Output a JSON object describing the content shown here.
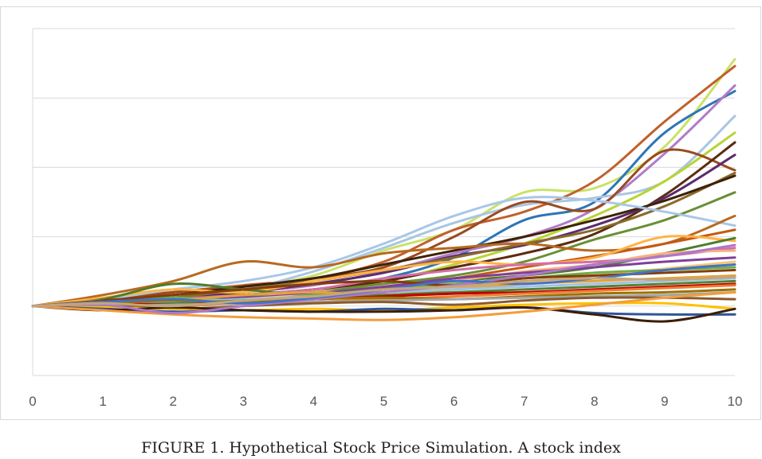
{
  "chart_data": {
    "type": "line",
    "xlabel": "",
    "ylabel": "",
    "x": [
      0,
      1,
      2,
      3,
      4,
      5,
      6,
      7,
      8,
      9,
      10
    ],
    "xlim": [
      0,
      10
    ],
    "ylim": [
      0.5,
      3.0
    ],
    "y_gridlines": [
      1.0,
      1.5,
      2.0,
      2.5
    ],
    "y_tick_labels_shown": false,
    "grid": "horizontal",
    "legend": "none",
    "x_tick_labels": [
      "0",
      "1",
      "2",
      "3",
      "4",
      "5",
      "6",
      "7",
      "8",
      "9",
      "10"
    ],
    "series": [
      {
        "color": "#c9e26a",
        "values": [
          1.0,
          1.05,
          1.08,
          1.13,
          1.22,
          1.4,
          1.55,
          1.82,
          1.85,
          2.15,
          2.78
        ]
      },
      {
        "color": "#c0612b",
        "values": [
          1.0,
          1.03,
          1.1,
          1.15,
          1.2,
          1.32,
          1.55,
          1.68,
          1.9,
          2.33,
          2.73
        ]
      },
      {
        "color": "#2e75b6",
        "values": [
          1.0,
          1.02,
          1.06,
          1.08,
          1.12,
          1.2,
          1.35,
          1.62,
          1.75,
          2.25,
          2.55
        ]
      },
      {
        "color": "#b07cc6",
        "values": [
          1.0,
          1.04,
          1.05,
          1.1,
          1.15,
          1.25,
          1.38,
          1.5,
          1.7,
          2.1,
          2.59
        ]
      },
      {
        "color": "#a9c6e2",
        "values": [
          1.0,
          1.03,
          1.07,
          1.12,
          1.25,
          1.42,
          1.6,
          1.73,
          1.78,
          1.9,
          2.37
        ]
      },
      {
        "color": "#b8d433",
        "values": [
          1.0,
          1.02,
          1.05,
          1.08,
          1.12,
          1.18,
          1.3,
          1.45,
          1.65,
          1.9,
          2.25
        ]
      },
      {
        "color": "#9a4a1e",
        "values": [
          1.0,
          1.05,
          1.1,
          1.14,
          1.2,
          1.28,
          1.5,
          1.75,
          1.7,
          2.12,
          1.98
        ]
      },
      {
        "color": "#5b2c0f",
        "values": [
          1.0,
          1.01,
          1.04,
          1.08,
          1.12,
          1.18,
          1.28,
          1.38,
          1.52,
          1.8,
          2.18
        ]
      },
      {
        "color": "#5a2d6e",
        "values": [
          1.0,
          1.03,
          1.06,
          1.1,
          1.16,
          1.24,
          1.36,
          1.44,
          1.58,
          1.78,
          2.09
        ]
      },
      {
        "color": "#8a6a2a",
        "values": [
          1.0,
          1.02,
          1.06,
          1.12,
          1.18,
          1.26,
          1.35,
          1.45,
          1.55,
          1.72,
          1.96
        ]
      },
      {
        "color": "#3d2208",
        "values": [
          1.0,
          1.04,
          1.08,
          1.14,
          1.2,
          1.3,
          1.4,
          1.5,
          1.62,
          1.76,
          1.94
        ]
      },
      {
        "color": "#6a8f35",
        "values": [
          1.0,
          1.02,
          1.04,
          1.07,
          1.1,
          1.16,
          1.22,
          1.32,
          1.48,
          1.62,
          1.82
        ]
      },
      {
        "color": "#a8c7e8",
        "values": [
          1.0,
          1.05,
          1.12,
          1.18,
          1.28,
          1.45,
          1.65,
          1.78,
          1.76,
          1.68,
          1.58
        ]
      },
      {
        "color": "#b8691f",
        "values": [
          1.0,
          1.08,
          1.18,
          1.32,
          1.28,
          1.38,
          1.42,
          1.45,
          1.4,
          1.45,
          1.65
        ]
      },
      {
        "color": "#c55a11",
        "values": [
          1.0,
          1.02,
          1.03,
          1.05,
          1.08,
          1.13,
          1.2,
          1.28,
          1.36,
          1.45,
          1.55
        ]
      },
      {
        "color": "#ffb347",
        "values": [
          1.0,
          1.06,
          1.12,
          1.1,
          1.18,
          1.26,
          1.32,
          1.3,
          1.35,
          1.5,
          1.47
        ]
      },
      {
        "color": "#4e7d2a",
        "values": [
          1.0,
          1.05,
          1.16,
          1.12,
          1.08,
          1.12,
          1.18,
          1.22,
          1.28,
          1.38,
          1.49
        ]
      },
      {
        "color": "#d36fa6",
        "values": [
          1.0,
          1.01,
          1.05,
          1.08,
          1.12,
          1.2,
          1.26,
          1.3,
          1.32,
          1.36,
          1.42
        ]
      },
      {
        "color": "#f4b183",
        "values": [
          1.0,
          1.03,
          1.05,
          1.06,
          1.1,
          1.12,
          1.18,
          1.25,
          1.3,
          1.38,
          1.4
        ]
      },
      {
        "color": "#7f3f98",
        "values": [
          1.0,
          1.02,
          1.04,
          1.06,
          1.09,
          1.14,
          1.2,
          1.24,
          1.28,
          1.32,
          1.35
        ]
      },
      {
        "color": "#f7c873",
        "values": [
          1.0,
          1.04,
          1.02,
          1.05,
          1.08,
          1.1,
          1.13,
          1.17,
          1.22,
          1.27,
          1.32
        ]
      },
      {
        "color": "#70ad47",
        "values": [
          1.0,
          1.02,
          1.06,
          1.04,
          1.08,
          1.12,
          1.16,
          1.2,
          1.24,
          1.26,
          1.28
        ]
      },
      {
        "color": "#843c0c",
        "values": [
          1.0,
          1.04,
          1.08,
          1.12,
          1.16,
          1.18,
          1.15,
          1.2,
          1.22,
          1.24,
          1.26
        ]
      },
      {
        "color": "#e2a33a",
        "values": [
          1.0,
          1.03,
          1.04,
          1.08,
          1.1,
          1.08,
          1.12,
          1.16,
          1.18,
          1.2,
          1.22
        ]
      },
      {
        "color": "#9dc3e6",
        "values": [
          1.0,
          1.02,
          1.03,
          1.05,
          1.07,
          1.1,
          1.12,
          1.14,
          1.16,
          1.18,
          1.2
        ]
      },
      {
        "color": "#548235",
        "values": [
          1.0,
          1.01,
          1.02,
          1.04,
          1.06,
          1.08,
          1.1,
          1.12,
          1.14,
          1.16,
          1.18
        ]
      },
      {
        "color": "#c00000",
        "values": [
          1.0,
          1.02,
          1.01,
          1.03,
          1.05,
          1.07,
          1.09,
          1.1,
          1.12,
          1.14,
          1.16
        ]
      },
      {
        "color": "#ed7d31",
        "values": [
          1.0,
          1.01,
          1.0,
          1.02,
          1.03,
          1.05,
          1.07,
          1.09,
          1.11,
          1.13,
          1.15
        ]
      },
      {
        "color": "#997300",
        "values": [
          1.0,
          1.02,
          1.04,
          1.03,
          1.05,
          1.06,
          1.05,
          1.07,
          1.09,
          1.1,
          1.12
        ]
      },
      {
        "color": "#a5a5a5",
        "values": [
          1.0,
          1.0,
          1.01,
          1.02,
          1.03,
          1.04,
          1.05,
          1.06,
          1.07,
          1.08,
          1.1
        ]
      },
      {
        "color": "#8b5a2b",
        "values": [
          1.0,
          1.01,
          0.98,
          1.0,
          1.02,
          1.03,
          1.01,
          1.04,
          1.06,
          1.06,
          1.05
        ]
      },
      {
        "color": "#ffc000",
        "values": [
          1.0,
          0.99,
          0.98,
          0.97,
          0.98,
          0.97,
          0.99,
          1.01,
          1.02,
          1.02,
          0.98
        ]
      },
      {
        "color": "#2f5597",
        "values": [
          1.0,
          0.98,
          0.96,
          0.97,
          0.96,
          0.98,
          0.97,
          0.99,
          0.95,
          0.94,
          0.94
        ]
      },
      {
        "color": "#3b1e08",
        "values": [
          1.0,
          0.97,
          0.99,
          0.97,
          0.96,
          0.96,
          0.97,
          0.99,
          0.94,
          0.89,
          0.98
        ]
      },
      {
        "color": "#f39c3d",
        "values": [
          1.0,
          0.97,
          0.94,
          0.92,
          0.91,
          0.9,
          0.92,
          0.96,
          1.01,
          1.06,
          1.1
        ]
      },
      {
        "color": "#ae78c7",
        "values": [
          1.0,
          1.01,
          0.95,
          1.0,
          1.05,
          1.1,
          1.15,
          1.22,
          1.3,
          1.36,
          1.44
        ]
      },
      {
        "color": "#4472c4",
        "values": [
          1.0,
          1.03,
          1.05,
          1.02,
          1.06,
          1.12,
          1.18,
          1.16,
          1.2,
          1.26,
          1.3
        ]
      },
      {
        "color": "#c5a57a",
        "values": [
          1.0,
          1.02,
          1.0,
          1.04,
          1.07,
          1.12,
          1.14,
          1.18,
          1.2,
          1.19,
          1.21
        ]
      }
    ]
  },
  "caption": {
    "text": "FIGURE 1. Hypothetical Stock Price Simulation. A stock index"
  }
}
